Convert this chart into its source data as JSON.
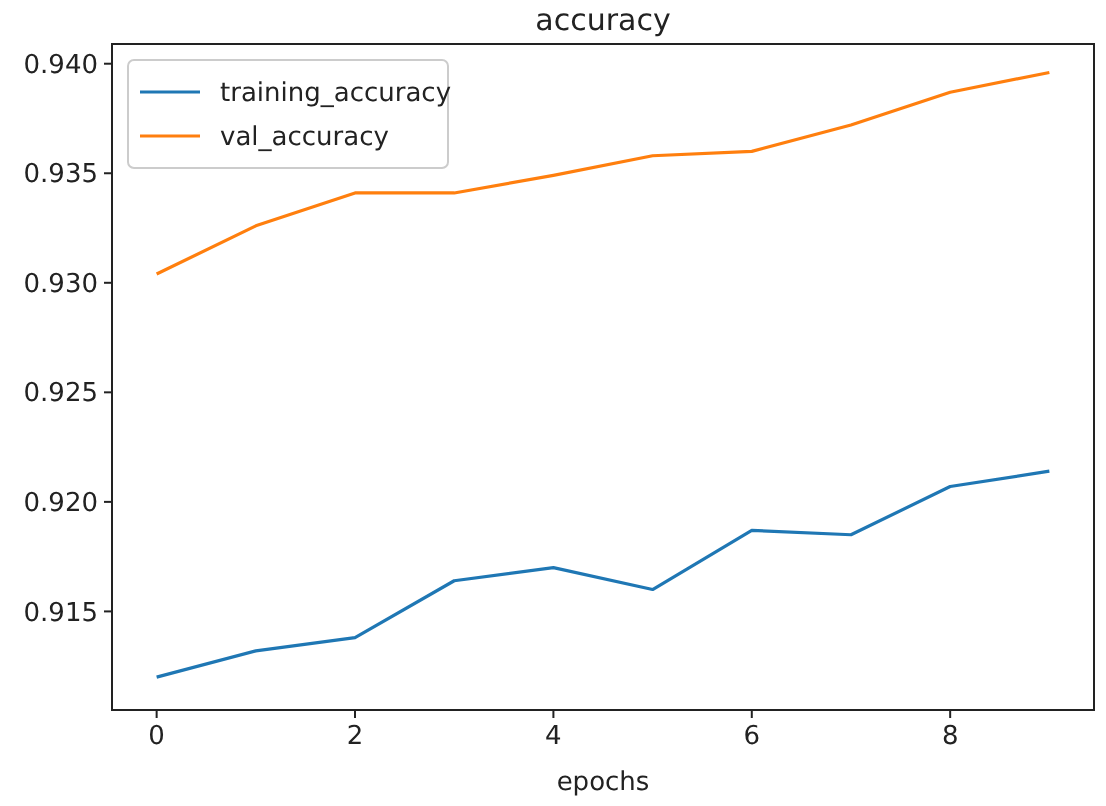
{
  "chart_data": {
    "type": "line",
    "title": "accuracy",
    "xlabel": "epochs",
    "x": [
      0,
      1,
      2,
      3,
      4,
      5,
      6,
      7,
      8,
      9
    ],
    "series": [
      {
        "name": "training_accuracy",
        "color": "#1f77b4",
        "values": [
          0.912,
          0.9132,
          0.9138,
          0.9164,
          0.917,
          0.916,
          0.9187,
          0.9185,
          0.9207,
          0.9214
        ]
      },
      {
        "name": "val_accuracy",
        "color": "#ff7f0e",
        "values": [
          0.9304,
          0.9326,
          0.9341,
          0.9341,
          0.9349,
          0.9358,
          0.936,
          0.9372,
          0.9387,
          0.9396
        ]
      }
    ],
    "xlim": [
      -0.45,
      9.45
    ],
    "ylim": [
      0.9105,
      0.9409
    ],
    "xticks": [
      0,
      2,
      4,
      6,
      8
    ],
    "yticks": [
      {
        "value": 0.915,
        "label": "0.915"
      },
      {
        "value": 0.92,
        "label": "0.920"
      },
      {
        "value": 0.925,
        "label": "0.925"
      },
      {
        "value": 0.93,
        "label": "0.930"
      },
      {
        "value": 0.935,
        "label": "0.935"
      },
      {
        "value": 0.94,
        "label": "0.940"
      }
    ],
    "legend": "top left",
    "grid": false,
    "marker": "none",
    "line_style": "solid"
  }
}
